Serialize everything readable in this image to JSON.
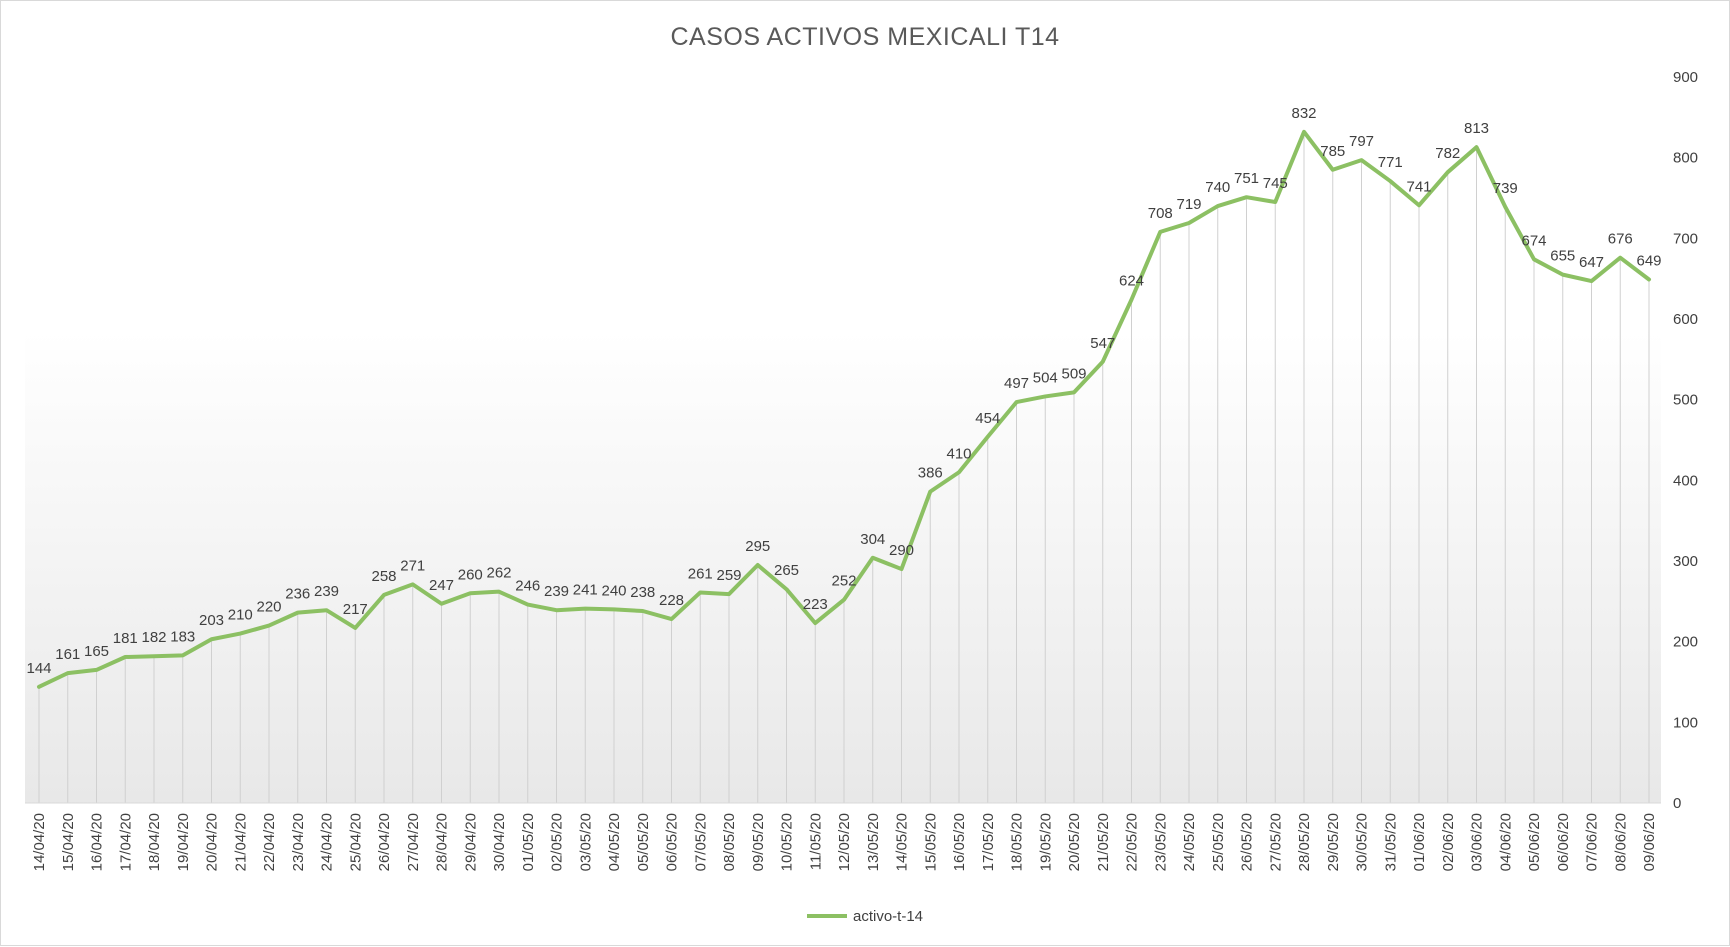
{
  "chart_data": {
    "type": "line",
    "title": "CASOS ACTIVOS MEXICALI T14",
    "xlabel": "",
    "ylabel": "",
    "ylim": [
      0,
      900
    ],
    "y_ticks": [
      "0",
      "100",
      "200",
      "300",
      "400",
      "500",
      "600",
      "700",
      "800",
      "900"
    ],
    "y_axis_side": "right",
    "legend_placement": "bottom",
    "grid": "vertical drop lines at each category",
    "line_color": "#8cc063",
    "categories": [
      "14/04/20",
      "15/04/20",
      "16/04/20",
      "17/04/20",
      "18/04/20",
      "19/04/20",
      "20/04/20",
      "21/04/20",
      "22/04/20",
      "23/04/20",
      "24/04/20",
      "25/04/20",
      "26/04/20",
      "27/04/20",
      "28/04/20",
      "29/04/20",
      "30/04/20",
      "01/05/20",
      "02/05/20",
      "03/05/20",
      "04/05/20",
      "05/05/20",
      "06/05/20",
      "07/05/20",
      "08/05/20",
      "09/05/20",
      "10/05/20",
      "11/05/20",
      "12/05/20",
      "13/05/20",
      "14/05/20",
      "15/05/20",
      "16/05/20",
      "17/05/20",
      "18/05/20",
      "19/05/20",
      "20/05/20",
      "21/05/20",
      "22/05/20",
      "23/05/20",
      "24/05/20",
      "25/05/20",
      "26/05/20",
      "27/05/20",
      "28/05/20",
      "29/05/20",
      "30/05/20",
      "31/05/20",
      "01/06/20",
      "02/06/20",
      "03/06/20",
      "04/06/20",
      "05/06/20",
      "06/06/20",
      "07/06/20",
      "08/06/20",
      "09/06/20"
    ],
    "series": [
      {
        "name": "activo-t-14",
        "values": [
          144,
          161,
          165,
          181,
          182,
          183,
          203,
          210,
          220,
          236,
          239,
          217,
          258,
          271,
          247,
          260,
          262,
          246,
          239,
          241,
          240,
          238,
          228,
          261,
          259,
          295,
          265,
          223,
          252,
          304,
          290,
          386,
          410,
          454,
          497,
          504,
          509,
          547,
          624,
          708,
          719,
          740,
          751,
          745,
          832,
          785,
          797,
          771,
          741,
          782,
          813,
          739,
          674,
          655,
          647,
          676,
          649
        ]
      }
    ]
  }
}
